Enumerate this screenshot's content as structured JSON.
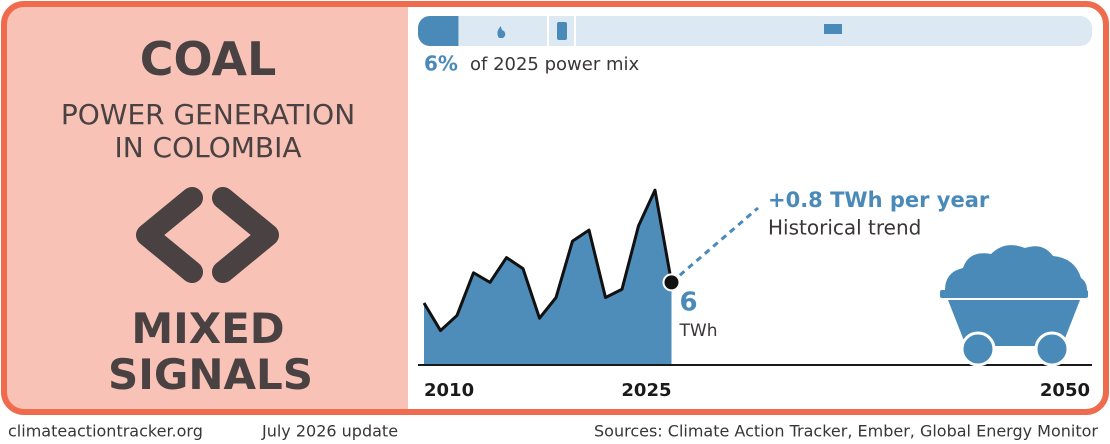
{
  "header": {
    "title": "COAL",
    "subtitle": "POWER GENERATION IN COLOMBIA",
    "verdict": "MIXED SIGNALS"
  },
  "power_mix": {
    "share": 6,
    "share_label": "6%",
    "text": "of 2025 power mix",
    "color": "#4a8ab8"
  },
  "chart_data": {
    "type": "area",
    "x": [
      2010,
      2011,
      2012,
      2013,
      2014,
      2015,
      2016,
      2017,
      2018,
      2019,
      2020,
      2021,
      2022,
      2023,
      2024,
      2025
    ],
    "values": [
      4.5,
      2.5,
      3.6,
      6.7,
      6.0,
      7.8,
      7.0,
      3.4,
      4.9,
      9.0,
      9.8,
      4.9,
      5.5,
      10.1,
      12.7,
      6
    ],
    "unit": "TWh",
    "color": "#4e8db9",
    "xlim": [
      2010,
      2050
    ],
    "xticks": [
      2010,
      2025,
      2050
    ],
    "ylim": [
      0,
      13
    ],
    "trend_label": "+0.8 TWh per year",
    "trend_note": "Historical trend"
  },
  "footer": {
    "site": "climateactiontracker.org",
    "update": "July 2026 update",
    "sources": "Sources: Climate Action Tracker, Ember, Global Energy Monitor"
  }
}
